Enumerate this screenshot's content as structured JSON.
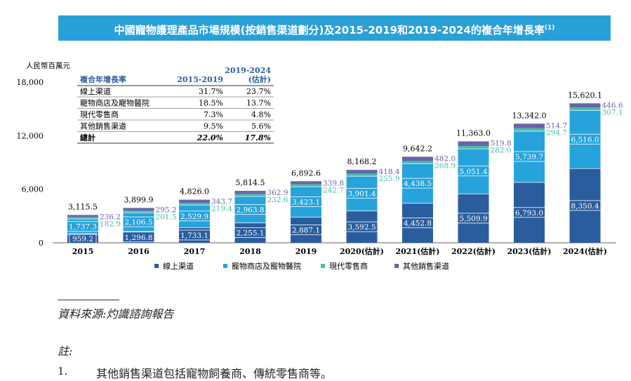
{
  "title": "中國寵物護理產品市場規模(按銷售渠道劃分)及2015-2019和2019-2024的複合年增長率",
  "title_sup": "(1)",
  "chart_data": {
    "type": "stacked-bar",
    "unit_label": "人民幣百萬元",
    "categories": [
      "2015",
      "2016",
      "2017",
      "2018",
      "2019",
      "2020(估計)",
      "2021(估計)",
      "2022(估計)",
      "2023(估計)",
      "2024(估計)"
    ],
    "y_ticks": [
      "0",
      "6,000",
      "12,000",
      "18,000"
    ],
    "ylim": [
      0,
      18000
    ],
    "totals": [
      "3,115.5",
      "3,899.9",
      "4,826.0",
      "5,814.5",
      "6,892.6",
      "8,168.2",
      "9,642.2",
      "11,363.0",
      "13,342.0",
      "15,620.1"
    ],
    "series": [
      {
        "name": "線上渠道",
        "color": "#2a5d9e",
        "values": [
          959.2,
          1296.8,
          1733.1,
          2255.1,
          2887.1,
          3592.5,
          4452.8,
          5509.9,
          6793.0,
          8350.4
        ],
        "labels": [
          "959.2",
          "1,296.8",
          "1,733.1",
          "2,255.1",
          "2,887.1",
          "3,592.5",
          "4,452.8",
          "5,509.9",
          "6,793.0",
          "8,350.4"
        ]
      },
      {
        "name": "寵物商店及寵物醫院",
        "color": "#27a3dc",
        "values": [
          1737.3,
          2106.5,
          2529.9,
          2963.8,
          3423.1,
          3901.4,
          4438.5,
          5051.4,
          5739.7,
          6516.0
        ],
        "labels": [
          "1,737.3",
          "2,106.5",
          "2,529.9",
          "2,963.8",
          "3,423.1",
          "3,901.4",
          "4,438.5",
          "5,051.4",
          "5,739.7",
          "6,516.0"
        ]
      },
      {
        "name": "現代零售商",
        "color": "#3fc0a9",
        "values": [
          182.9,
          201.5,
          219.4,
          232.6,
          242.7,
          255.9,
          268.9,
          282.0,
          294.7,
          307.1
        ],
        "labels": [
          "182.9",
          "201.5",
          "219.4",
          "232.6",
          "242.7",
          "255.9",
          "268.9",
          "282.0",
          "294.7",
          "307.1"
        ]
      },
      {
        "name": "其他銷售渠道",
        "color": "#6b63a8",
        "values": [
          236.2,
          295.2,
          343.7,
          362.9,
          339.8,
          418.4,
          482.0,
          519.8,
          514.7,
          446.6
        ],
        "labels": [
          "236.2",
          "295.2",
          "343.7",
          "362.9",
          "339.8",
          "418.4",
          "482.0",
          "519.8",
          "514.7",
          "446.6"
        ]
      }
    ],
    "cagr_table": {
      "header": [
        "複合年增長率",
        "2015-2019",
        "2019-2024",
        "(估計)"
      ],
      "rows": [
        [
          "線上渠道",
          "31.7%",
          "23.7%"
        ],
        [
          "寵物商店及寵物醫院",
          "18.5%",
          "13.7%"
        ],
        [
          "現代零售商",
          "7.3%",
          "4.8%"
        ],
        [
          "其他銷售渠道",
          "9.5%",
          "5.6%"
        ]
      ],
      "total": [
        "總計",
        "22.0%",
        "17.8%"
      ]
    }
  },
  "source": "資料來源:灼識諮詢報告",
  "notes": {
    "title": "註:",
    "items": [
      {
        "num": "1.",
        "text": "其他銷售渠道包括寵物飼養商、傳統零售商等。"
      }
    ]
  }
}
